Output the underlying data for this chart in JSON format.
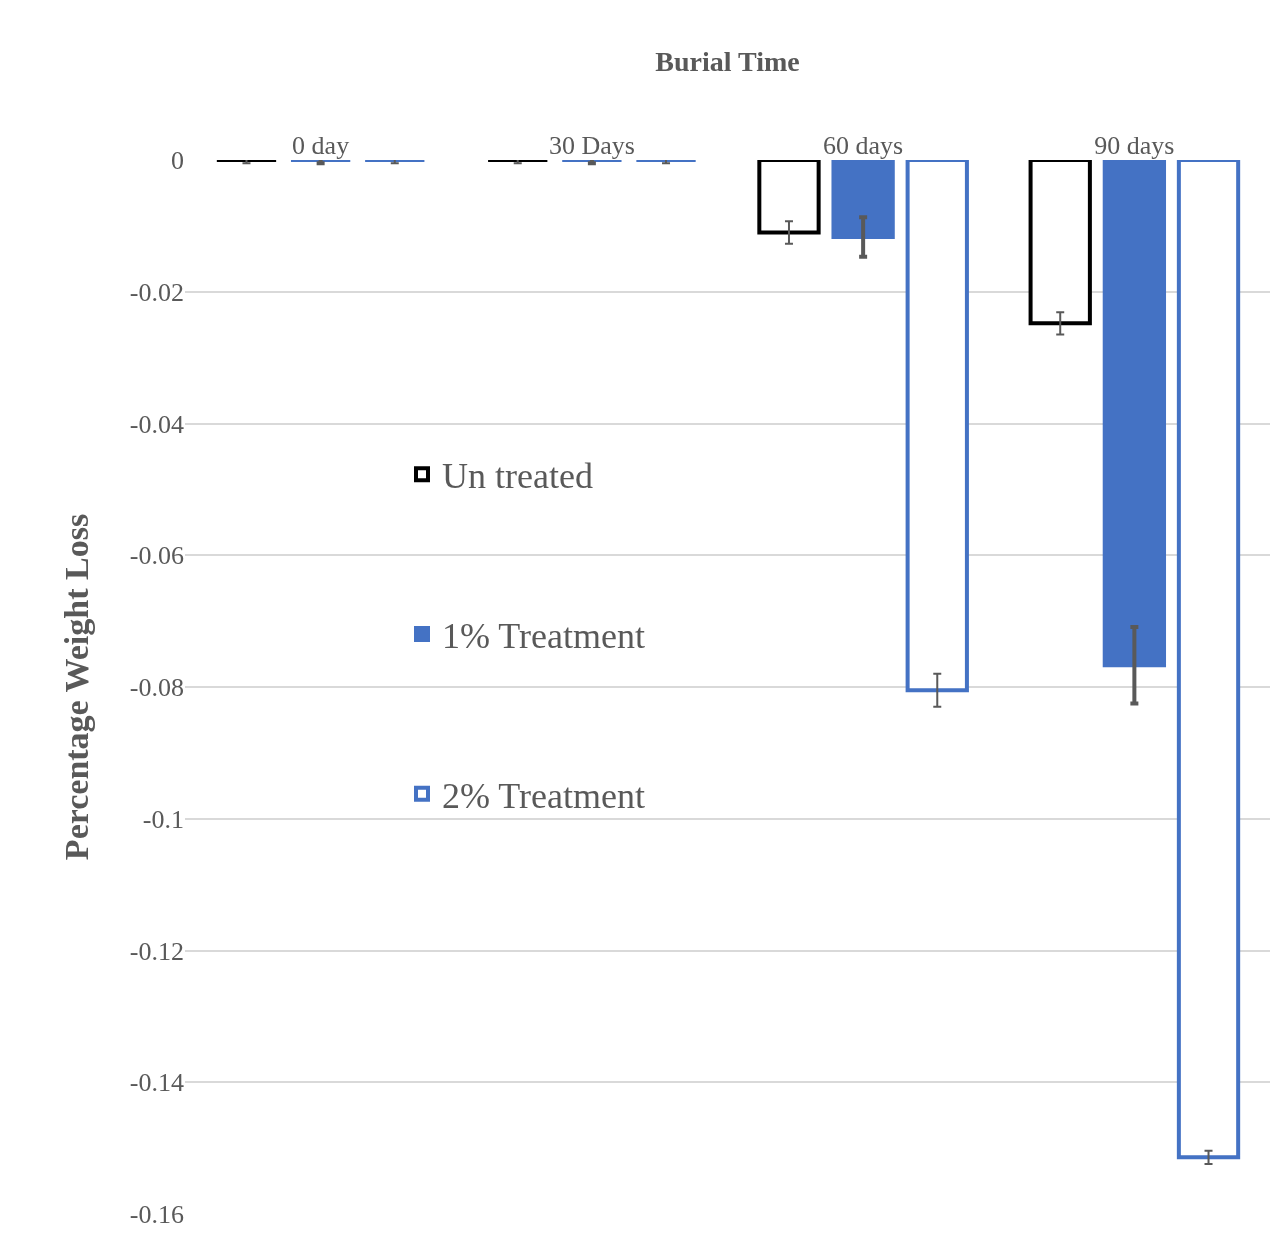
{
  "chart_data": {
    "type": "bar",
    "xlabel": "Burial Time",
    "ylabel": "Percentage Weight Loss",
    "categories": [
      "0 day",
      "30 Days",
      "60 days",
      "90 days"
    ],
    "series": [
      {
        "name": "Un treated",
        "color": "#000000",
        "values": [
          0,
          0,
          -0.011,
          -0.0248
        ],
        "errors": [
          0.0005,
          0.0005,
          0.0017,
          0.0017
        ]
      },
      {
        "name": "1% Treatment",
        "color": "#4472c4",
        "values": [
          0,
          0,
          -0.0117,
          -0.0767
        ],
        "errors": [
          0.0005,
          0.0005,
          0.003,
          0.0058
        ]
      },
      {
        "name": "2% Treatment",
        "color": "#4472c4",
        "values": [
          0,
          0,
          -0.0805,
          -0.1514
        ],
        "errors": [
          0.0005,
          0.0005,
          0.0025,
          0.001
        ]
      }
    ],
    "ylim": [
      -0.16,
      0
    ],
    "yticks": [
      0,
      -0.02,
      -0.04,
      -0.06,
      -0.08,
      -0.1,
      -0.12,
      -0.14,
      -0.16
    ],
    "grid": "y",
    "legend": "left"
  }
}
